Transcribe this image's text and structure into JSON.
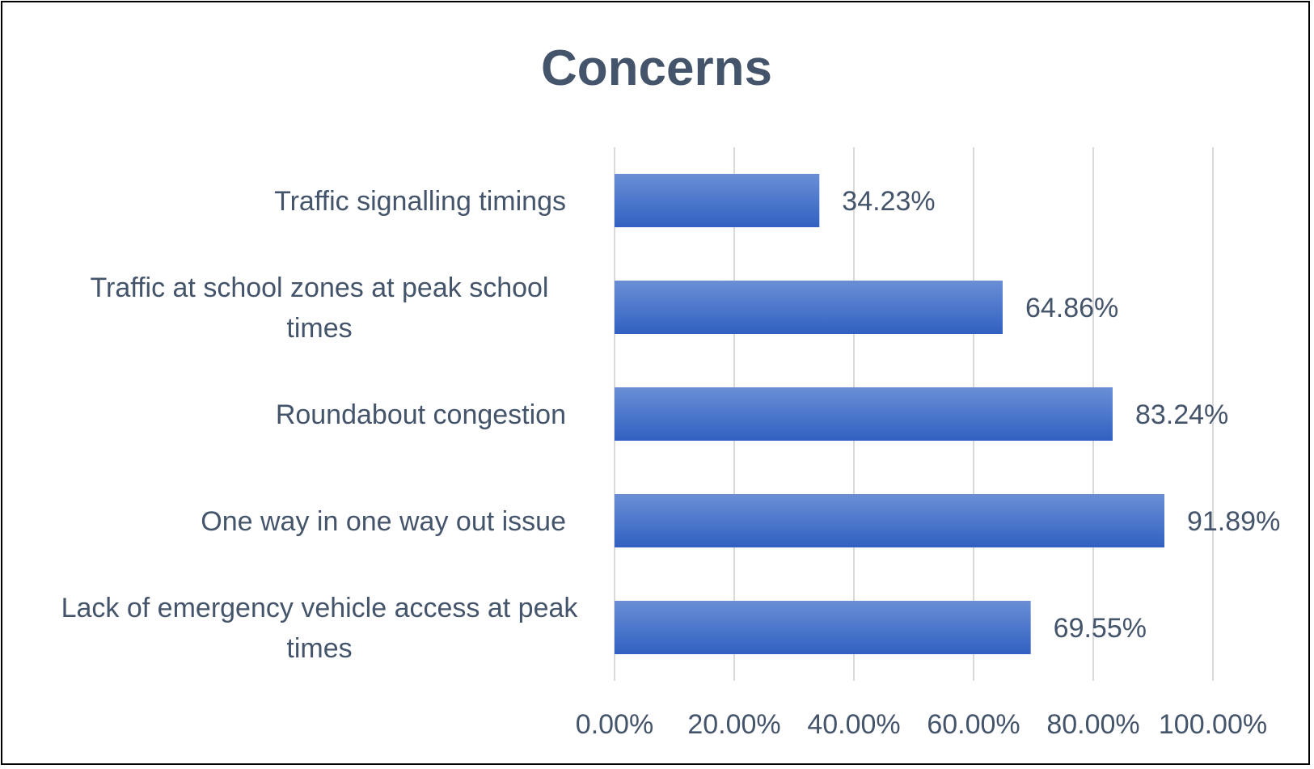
{
  "chart_data": {
    "type": "bar",
    "orientation": "horizontal",
    "title": "Concerns",
    "categories": [
      "Traffic signalling timings",
      "Traffic at school zones at peak school times",
      "Roundabout congestion",
      "One way in one way out issue",
      "Lack of emergency vehicle access at peak times"
    ],
    "category_lines": [
      [
        "Traffic signalling timings"
      ],
      [
        "Traffic at school zones at peak school",
        "times"
      ],
      [
        "Roundabout congestion"
      ],
      [
        "One way in one way out issue"
      ],
      [
        "Lack of emergency vehicle access at peak",
        "times"
      ]
    ],
    "values": [
      34.23,
      64.86,
      83.24,
      91.89,
      69.55
    ],
    "data_labels": [
      "34.23%",
      "64.86%",
      "83.24%",
      "91.89%",
      "69.55%"
    ],
    "xlim": [
      0,
      100
    ],
    "x_ticks": [
      "0.00%",
      "20.00%",
      "40.00%",
      "60.00%",
      "80.00%",
      "100.00%"
    ],
    "grid": true,
    "legend": "none",
    "colors": {
      "bar_top": "#6a8fd6",
      "bar_bottom": "#3060c0",
      "text": "#44546a",
      "grid": "#d9d9d9"
    }
  }
}
